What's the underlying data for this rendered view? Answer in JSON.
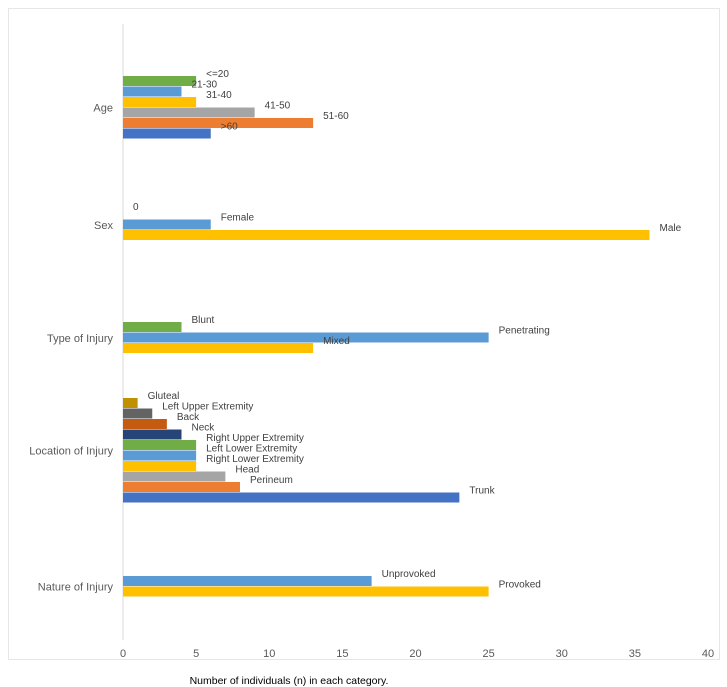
{
  "chart_data": {
    "type": "bar",
    "orientation": "horizontal",
    "xlabel": "Number of individuals (n) in each category.",
    "xlim": [
      0,
      40
    ],
    "xticks": [
      "0",
      "5",
      "10",
      "15",
      "20",
      "25",
      "30",
      "35",
      "40"
    ],
    "grid": false,
    "legend": "none",
    "groups": [
      {
        "category": "Age",
        "bars": [
          {
            "label": "<=20",
            "value": 5,
            "color": "#70ad47"
          },
          {
            "label": "21-30",
            "value": 4,
            "color": "#5b9bd5"
          },
          {
            "label": "31-40",
            "value": 5,
            "color": "#ffc000"
          },
          {
            "label": "41-50",
            "value": 9,
            "color": "#a5a5a5"
          },
          {
            "label": "51-60",
            "value": 13,
            "color": "#ed7d31"
          },
          {
            "label": ">60",
            "value": 6,
            "color": "#4472c4"
          }
        ]
      },
      {
        "category": "Sex",
        "bars": [
          {
            "label": "0",
            "value": 0,
            "color": "#a5a5a5"
          },
          {
            "label": "Female",
            "value": 6,
            "color": "#5b9bd5"
          },
          {
            "label": "Male",
            "value": 36,
            "color": "#ffc000"
          }
        ]
      },
      {
        "category": "Type of Injury",
        "bars": [
          {
            "label": "Blunt",
            "value": 4,
            "color": "#70ad47"
          },
          {
            "label": "Penetrating",
            "value": 25,
            "color": "#5b9bd5"
          },
          {
            "label": "Mixed",
            "value": 13,
            "color": "#ffc000"
          }
        ]
      },
      {
        "category": "Location of Injury",
        "bars": [
          {
            "label": "Gluteal",
            "value": 1,
            "color": "#bf9000"
          },
          {
            "label": "Left Upper Extremity",
            "value": 2,
            "color": "#636363"
          },
          {
            "label": "Back",
            "value": 3,
            "color": "#c55a11"
          },
          {
            "label": "Neck",
            "value": 4,
            "color": "#264478"
          },
          {
            "label": "Right Upper Extremity",
            "value": 5,
            "color": "#70ad47"
          },
          {
            "label": "Left Lower Extremity",
            "value": 5,
            "color": "#5b9bd5"
          },
          {
            "label": "Right Lower Extremity",
            "value": 5,
            "color": "#ffc000"
          },
          {
            "label": "Head",
            "value": 7,
            "color": "#a5a5a5"
          },
          {
            "label": "Perineum",
            "value": 8,
            "color": "#ed7d31"
          },
          {
            "label": "Trunk",
            "value": 23,
            "color": "#4472c4"
          }
        ]
      },
      {
        "category": "Nature of Injury",
        "bars": [
          {
            "label": "Unprovoked",
            "value": 17,
            "color": "#5b9bd5"
          },
          {
            "label": "Provoked",
            "value": 25,
            "color": "#ffc000"
          }
        ]
      }
    ]
  }
}
